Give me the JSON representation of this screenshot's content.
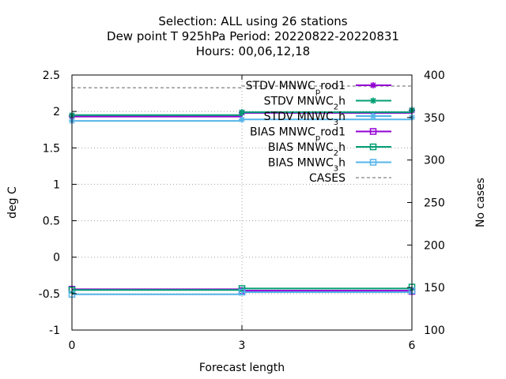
{
  "chart_data": {
    "type": "line",
    "title_lines": [
      "Selection: ALL using    26 stations",
      "Dew point T 925hPa   Period: 20220822-20220831",
      "Hours:  00,06,12,18"
    ],
    "xlabel": "Forecast length",
    "ylabel": "deg C",
    "y2label": "No cases",
    "xlim": [
      0,
      6
    ],
    "ylim": [
      -1,
      2.5
    ],
    "y2lim": [
      100,
      400
    ],
    "x_ticks": [
      0,
      3,
      6
    ],
    "y_ticks": [
      -1,
      -0.5,
      0,
      0.5,
      1,
      1.5,
      2,
      2.5
    ],
    "y_tick_labels": [
      "-1",
      "-0.5",
      "0",
      "0.5",
      "1",
      "1.5",
      "2",
      "2.5"
    ],
    "y2_ticks": [
      100,
      150,
      200,
      250,
      300,
      350,
      400
    ],
    "grid": true,
    "legend_position": "top-right",
    "x": [
      0,
      3,
      6
    ],
    "series": [
      {
        "name": "STDV MNWC",
        "name_sub": "p",
        "name_suffix": "rod1",
        "axis": "y1",
        "color": "#9400d3",
        "marker": "star",
        "dash": "solid",
        "values": [
          1.93,
          1.98,
          2.01
        ]
      },
      {
        "name": "STDV MNWC",
        "name_sub": "2",
        "name_suffix": "h",
        "axis": "y1",
        "color": "#009e73",
        "marker": "star",
        "dash": "solid",
        "values": [
          1.95,
          1.99,
          2.02
        ]
      },
      {
        "name": "STDV MNWC",
        "name_sub": "3",
        "name_suffix": "h",
        "axis": "y1",
        "color": "#56b4e9",
        "marker": "star",
        "dash": "solid",
        "values": [
          1.87,
          1.89,
          1.92
        ]
      },
      {
        "name": "BIAS MNWC",
        "name_sub": "p",
        "name_suffix": "rod1",
        "axis": "y1",
        "color": "#9400d3",
        "marker": "square",
        "dash": "solid",
        "values": [
          -0.44,
          -0.46,
          -0.47
        ]
      },
      {
        "name": "BIAS MNWC",
        "name_sub": "2",
        "name_suffix": "h",
        "axis": "y1",
        "color": "#009e73",
        "marker": "square",
        "dash": "solid",
        "values": [
          -0.45,
          -0.43,
          -0.41
        ]
      },
      {
        "name": "BIAS MNWC",
        "name_sub": "3",
        "name_suffix": "h",
        "axis": "y1",
        "color": "#56b4e9",
        "marker": "square",
        "dash": "solid",
        "values": [
          -0.51,
          -0.48,
          -0.46
        ]
      },
      {
        "name": "CASES",
        "name_sub": "",
        "name_suffix": "",
        "axis": "y2",
        "color": "#808080",
        "marker": "none",
        "dash": "dashed",
        "values": [
          385,
          387,
          388
        ]
      }
    ]
  }
}
